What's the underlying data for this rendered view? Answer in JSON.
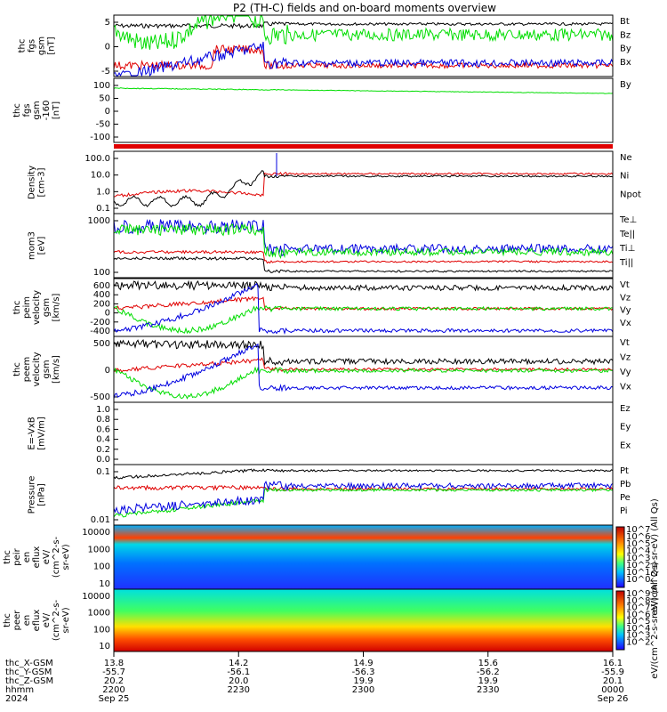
{
  "title": "P2 (TH-C) fields and on-board moments overview",
  "colors": {
    "black": "#000000",
    "red": "#e00000",
    "green": "#00dd00",
    "blue": "#0000e0"
  },
  "chart_data": [
    {
      "type": "line",
      "ylabel": [
        "thc",
        "fgs",
        "gsm",
        "[nT]"
      ],
      "ylim": [
        -8,
        8
      ],
      "ytick_labels": [
        "5",
        "0",
        "-5"
      ],
      "series": [
        {
          "name": "Bt",
          "color": "black"
        },
        {
          "name": "Bz",
          "color": "red"
        },
        {
          "name": "By",
          "color": "green"
        },
        {
          "name": "Bx",
          "color": "blue"
        }
      ]
    },
    {
      "type": "line",
      "ylabel": [
        "thc",
        "fgs",
        "gsm",
        "-160",
        "[nT]"
      ],
      "ylim": [
        -125,
        110
      ],
      "ytick_labels": [
        "100",
        "50",
        "0",
        "-50",
        "-100"
      ],
      "series": [
        {
          "name": "By",
          "color": "green"
        }
      ]
    },
    {
      "type": "line",
      "ylabel": [
        "Density",
        "[cm-3]"
      ],
      "yscale": "log",
      "ytick_labels": [
        "100.0",
        "10.0",
        "1.0",
        "0.1"
      ],
      "series": [
        {
          "name": "Ne",
          "color": "red"
        },
        {
          "name": "Ni",
          "color": "black"
        },
        {
          "name": "Npot",
          "color": "blue"
        }
      ]
    },
    {
      "type": "line",
      "ylabel": [
        "mom3",
        "[eV]"
      ],
      "yscale": "log",
      "ytick_labels": [
        "1000",
        "100"
      ],
      "series": [
        {
          "name": "Te⊥",
          "color": "red"
        },
        {
          "name": "Te||",
          "color": "black"
        },
        {
          "name": "Ti⊥",
          "color": "green"
        },
        {
          "name": "Ti||",
          "color": "green"
        }
      ]
    },
    {
      "type": "line",
      "ylabel": [
        "thc",
        "peim",
        "velocity",
        "gsm",
        "[km/s]"
      ],
      "ylim": [
        -450,
        650
      ],
      "ytick_labels": [
        "600",
        "400",
        "200",
        "0",
        "-200",
        "-400"
      ],
      "series": [
        {
          "name": "Vt",
          "color": "black"
        },
        {
          "name": "Vz",
          "color": "red"
        },
        {
          "name": "Vy",
          "color": "green"
        },
        {
          "name": "Vx",
          "color": "blue"
        }
      ]
    },
    {
      "type": "line",
      "ylabel": [
        "thc",
        "peem",
        "velocity",
        "gsm",
        "[km/s]"
      ],
      "ylim": [
        -700,
        900
      ],
      "ytick_labels": [
        "500",
        "0",
        "-500"
      ],
      "series": [
        {
          "name": "Vt",
          "color": "black"
        },
        {
          "name": "Vz",
          "color": "red"
        },
        {
          "name": "Vy",
          "color": "green"
        },
        {
          "name": "Vx",
          "color": "blue"
        }
      ]
    },
    {
      "type": "line",
      "ylabel": [
        "E=-VxB",
        "[mV/m]"
      ],
      "ylim": [
        -0.05,
        1.0
      ],
      "ytick_labels": [
        "1.0",
        "0.8",
        "0.6",
        "0.4",
        "0.2",
        "0.0"
      ],
      "series": [
        {
          "name": "Ez",
          "color": "red"
        },
        {
          "name": "Ey",
          "color": "green"
        },
        {
          "name": "Ex",
          "color": "blue"
        }
      ]
    },
    {
      "type": "line",
      "ylabel": [
        "Pressure",
        "[nPa]"
      ],
      "yscale": "log",
      "ytick_labels": [
        "0.1",
        "0.01"
      ],
      "series": [
        {
          "name": "Pt",
          "color": "black"
        },
        {
          "name": "Pb",
          "color": "red"
        },
        {
          "name": "Pe",
          "color": "green"
        },
        {
          "name": "Pi",
          "color": "blue"
        }
      ]
    },
    {
      "type": "heatmap",
      "ylabel": [
        "thc",
        "peir",
        "en",
        "eflux",
        "eV/",
        "(cm^2-s-",
        "sr-eV)"
      ],
      "yscale": "log",
      "ytick_labels": [
        "10000",
        "1000",
        "100",
        "10"
      ],
      "colorbar_label": "eV/(cm^2-s-sr-eV) (All Qs)",
      "colorbar_ticks": [
        "10^7",
        "10^6",
        "10^5",
        "10^4",
        "10^3",
        "10^2",
        "10^1",
        "10^0"
      ]
    },
    {
      "type": "heatmap",
      "ylabel": [
        "thc",
        "peer",
        "en",
        "eflux",
        "eV/",
        "(cm^2-s-",
        "sr-eV)"
      ],
      "yscale": "log",
      "ytick_labels": [
        "10000",
        "1000",
        "100",
        "10"
      ],
      "colorbar_label": "eV/(cm^2-s-sr-eV) (All Qs)",
      "colorbar_ticks": [
        "10^9",
        "10^8",
        "10^7",
        "10^6",
        "10^5",
        "10^4",
        "10^3",
        "10^2"
      ]
    }
  ],
  "xaxis": {
    "row_labels": [
      "thc_X-GSM",
      "thc_Y-GSM",
      "thc_Z-GSM",
      "hhmm",
      "2024"
    ],
    "columns": [
      [
        "13.8",
        "-55.7",
        "20.2",
        "2200",
        "Sep 25"
      ],
      [
        "14.2",
        "-56.1",
        "20.0",
        "2230",
        ""
      ],
      [
        "14.9",
        "-56.3",
        "19.9",
        "2300",
        ""
      ],
      [
        "15.6",
        "-56.2",
        "19.9",
        "2330",
        ""
      ],
      [
        "16.1",
        "-55.9",
        "20.1",
        "0000",
        "Sep 26"
      ]
    ]
  }
}
